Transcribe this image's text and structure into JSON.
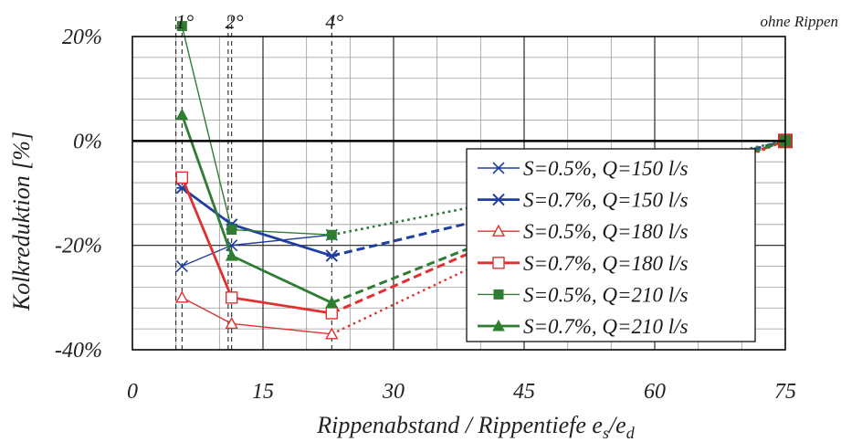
{
  "chart_data": {
    "type": "line",
    "title": "",
    "xlabel": "Rippenabstand / Rippentiefe e",
    "xlabel_sub1": "s",
    "xlabel_mid": "/e",
    "xlabel_sub2": "d",
    "ylabel": "Kolkreduktion [%]",
    "xlim": [
      0,
      75
    ],
    "ylim": [
      -40,
      20
    ],
    "x_ticks": [
      0,
      15,
      30,
      45,
      60,
      75
    ],
    "x_tick_labels": [
      "0",
      "15",
      "30",
      "45",
      "60",
      "75"
    ],
    "y_ticks": [
      20,
      0,
      -20,
      -40
    ],
    "y_tick_labels": [
      "20%",
      "0%",
      "-20%",
      "-40%"
    ],
    "grid": true,
    "legend_position": "right",
    "annotations": [
      {
        "text": "1°",
        "x": 5.7
      },
      {
        "text": "2°",
        "x": 11.4
      },
      {
        "text": "4°",
        "x": 22.9
      },
      {
        "text": "ohne Rippen",
        "x": 75
      }
    ],
    "vertical_reference_lines": [
      5.0,
      5.7,
      11.0,
      11.4,
      22.9
    ],
    "end_point": {
      "x": 75,
      "y": 0
    },
    "series": [
      {
        "name": "S=0.5%, Q=150 l/s",
        "color": "#1f3fa0",
        "marker": "x",
        "weight": "thin",
        "x": [
          5.7,
          11.4,
          22.9
        ],
        "y": [
          -24,
          -20,
          -18
        ],
        "extension_x": [
          38,
          75
        ],
        "extension_y": [
          -13,
          0
        ],
        "extension_style": "dotted"
      },
      {
        "name": "S=0.7%, Q=150 l/s",
        "color": "#1f3fa0",
        "marker": "asterisk",
        "weight": "thick",
        "x": [
          5.7,
          11.4,
          22.9
        ],
        "y": [
          -9,
          -16,
          -22
        ],
        "extension_x": [
          38,
          75
        ],
        "extension_y": [
          -16,
          0
        ],
        "extension_style": "dashed"
      },
      {
        "name": "S=0.5%, Q=180 l/s",
        "color": "#e03030",
        "marker": "triangle-open",
        "weight": "thin",
        "x": [
          5.7,
          11.4,
          22.9
        ],
        "y": [
          -30,
          -35,
          -37
        ],
        "extension_x": [
          38,
          75
        ],
        "extension_y": [
          -25,
          0
        ],
        "extension_style": "dotted"
      },
      {
        "name": "S=0.7%, Q=180 l/s",
        "color": "#e03030",
        "marker": "square-open",
        "weight": "thick",
        "x": [
          5.7,
          11.4,
          22.9
        ],
        "y": [
          -7,
          -30,
          -33
        ],
        "extension_x": [
          38,
          75
        ],
        "extension_y": [
          -22,
          0
        ],
        "extension_style": "dashed"
      },
      {
        "name": "S=0.5%, Q=210 l/s",
        "color": "#2e7d32",
        "marker": "square-filled",
        "weight": "thin",
        "x": [
          5.7,
          11.4,
          22.9
        ],
        "y": [
          22,
          -17,
          -18
        ],
        "extension_x": [
          38,
          75
        ],
        "extension_y": [
          -13,
          0
        ],
        "extension_style": "dotted"
      },
      {
        "name": "S=0.7%, Q=210 l/s",
        "color": "#2e7d32",
        "marker": "triangle-filled",
        "weight": "thick",
        "x": [
          5.7,
          11.4,
          22.9
        ],
        "y": [
          5,
          -22,
          -31
        ],
        "extension_x": [
          38,
          75
        ],
        "extension_y": [
          -21,
          0
        ],
        "extension_style": "dashed"
      }
    ]
  }
}
